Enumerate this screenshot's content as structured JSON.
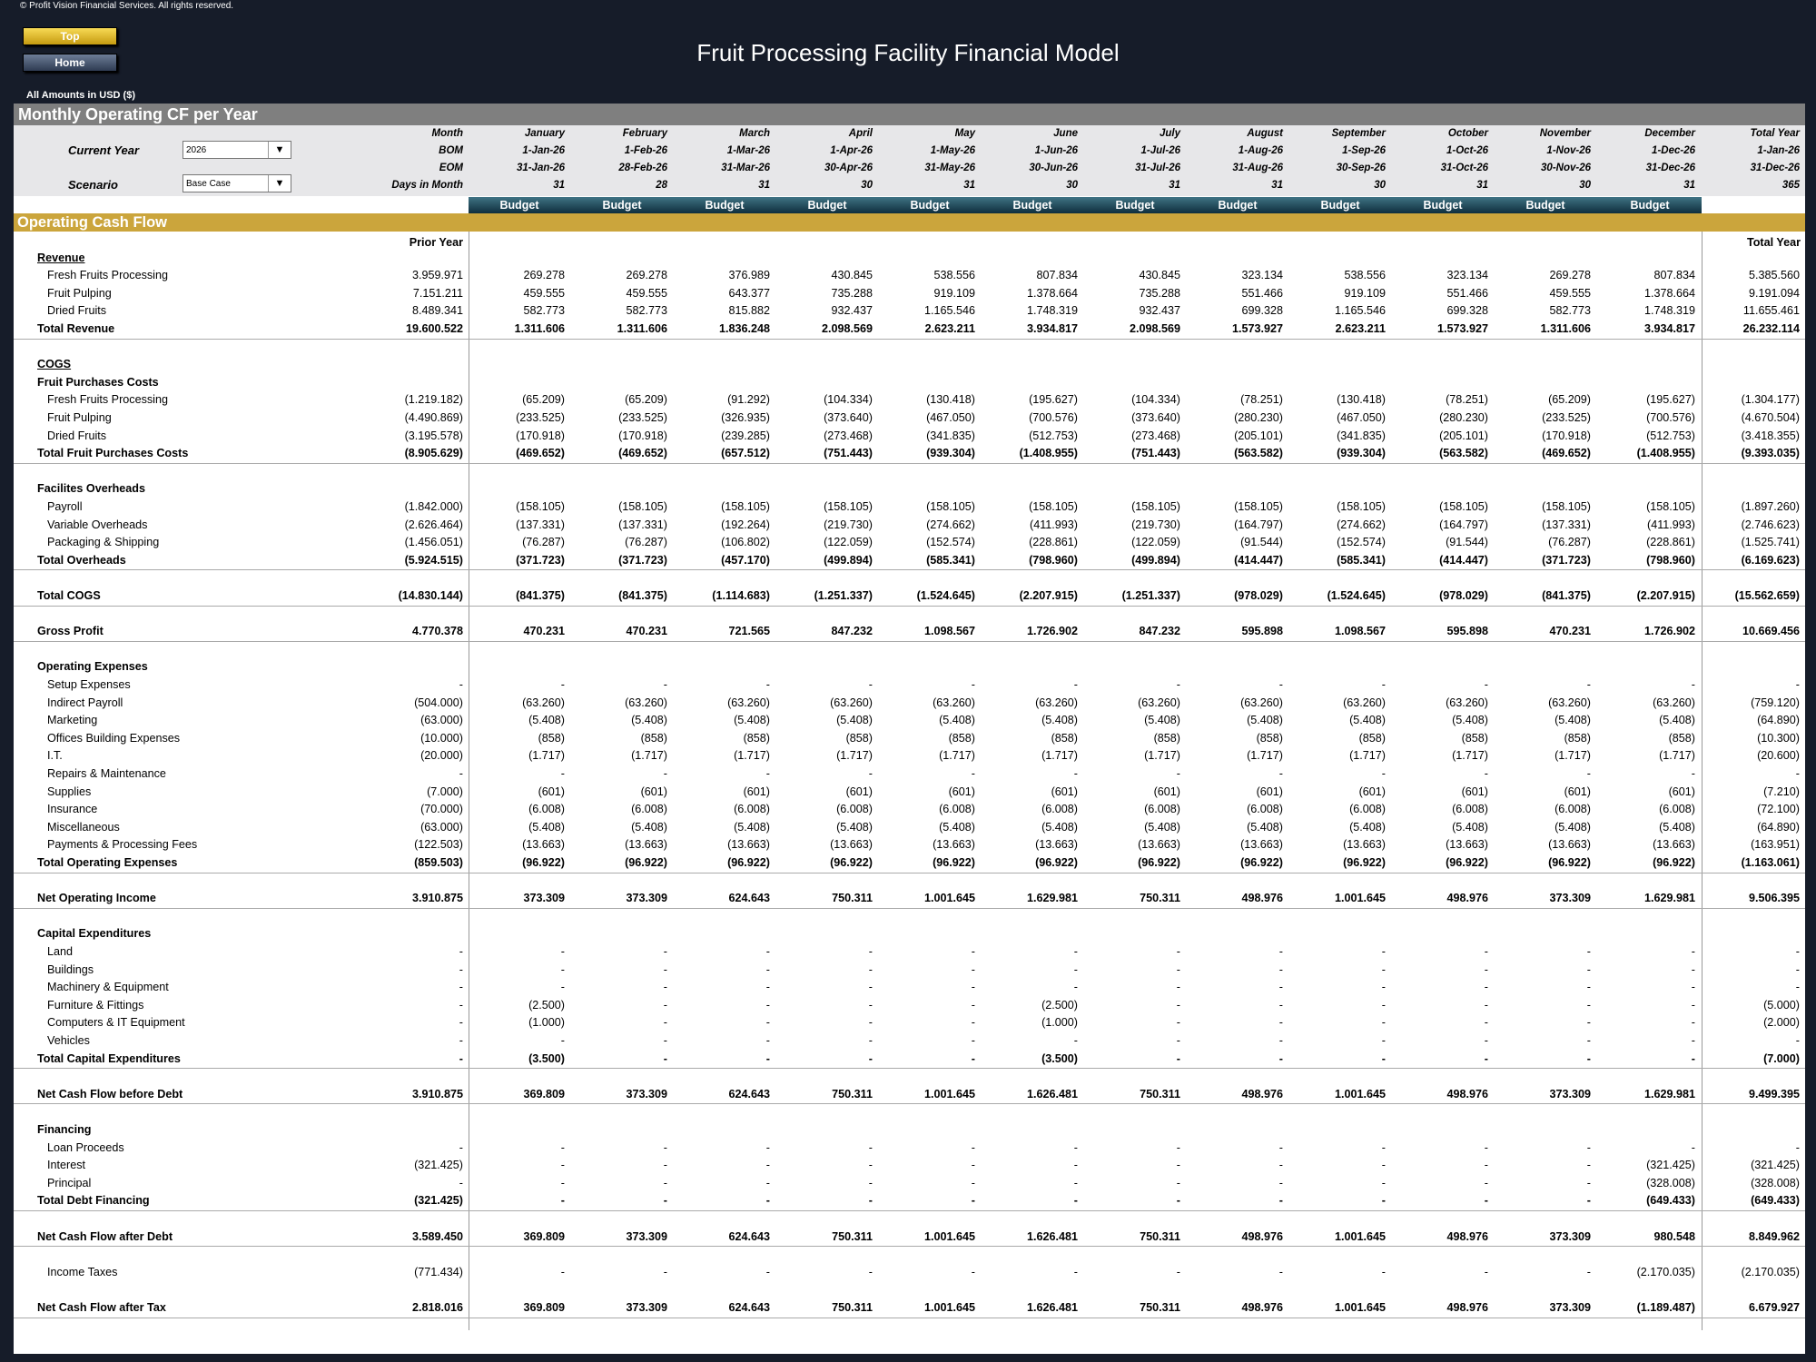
{
  "copyright": "© Profit Vision Financial Services. All rights reserved.",
  "nav": {
    "top_label": "Top",
    "home_label": "Home"
  },
  "title": "Fruit Processing Facility Financial Model",
  "amounts_note": "All Amounts in  USD ($)",
  "section_title": "Monthly Operating CF per Year",
  "params": {
    "current_year_label": "Current Year",
    "current_year_value": "2026",
    "scenario_label": "Scenario",
    "scenario_value": "Base Case"
  },
  "header_labels": {
    "month": "Month",
    "bom": "BOM",
    "eom": "EOM",
    "days": "Days in Month"
  },
  "months": [
    "January",
    "February",
    "March",
    "April",
    "May",
    "June",
    "July",
    "August",
    "September",
    "October",
    "November",
    "December",
    "Total Year"
  ],
  "bom": [
    "1-Jan-26",
    "1-Feb-26",
    "1-Mar-26",
    "1-Apr-26",
    "1-May-26",
    "1-Jun-26",
    "1-Jul-26",
    "1-Aug-26",
    "1-Sep-26",
    "1-Oct-26",
    "1-Nov-26",
    "1-Dec-26",
    "1-Jan-26"
  ],
  "eom": [
    "31-Jan-26",
    "28-Feb-26",
    "31-Mar-26",
    "30-Apr-26",
    "31-May-26",
    "30-Jun-26",
    "31-Jul-26",
    "31-Aug-26",
    "30-Sep-26",
    "31-Oct-26",
    "30-Nov-26",
    "31-Dec-26",
    "31-Dec-26"
  ],
  "days": [
    "31",
    "28",
    "31",
    "30",
    "31",
    "30",
    "31",
    "31",
    "30",
    "31",
    "30",
    "31",
    "365"
  ],
  "budget_label": "Budget",
  "ocf_title": "Operating Cash Flow",
  "prior_year_label": "Prior Year",
  "total_year_label": "Total Year",
  "rows": [
    {
      "label": "Revenue",
      "type": "ul",
      "r": 1
    },
    {
      "label": "Fresh Fruits Processing",
      "type": "item",
      "r": 2,
      "v": [
        "3.959.971",
        "269.278",
        "269.278",
        "376.989",
        "430.845",
        "538.556",
        "807.834",
        "430.845",
        "323.134",
        "538.556",
        "323.134",
        "269.278",
        "807.834",
        "5.385.560"
      ]
    },
    {
      "label": "Fruit Pulping",
      "type": "item",
      "r": 3,
      "v": [
        "7.151.211",
        "459.555",
        "459.555",
        "643.377",
        "735.288",
        "919.109",
        "1.378.664",
        "735.288",
        "551.466",
        "919.109",
        "551.466",
        "459.555",
        "1.378.664",
        "9.191.094"
      ]
    },
    {
      "label": "Dried Fruits",
      "type": "item",
      "r": 4,
      "v": [
        "8.489.341",
        "582.773",
        "582.773",
        "815.882",
        "932.437",
        "1.165.546",
        "1.748.319",
        "932.437",
        "699.328",
        "1.165.546",
        "699.328",
        "582.773",
        "1.748.319",
        "11.655.461"
      ]
    },
    {
      "label": "Total Revenue",
      "type": "total",
      "r": 5,
      "v": [
        "19.600.522",
        "1.311.606",
        "1.311.606",
        "1.836.248",
        "2.098.569",
        "2.623.211",
        "3.934.817",
        "2.098.569",
        "1.573.927",
        "2.623.211",
        "1.573.927",
        "1.311.606",
        "3.934.817",
        "26.232.114"
      ]
    },
    {
      "label": "COGS",
      "type": "ul",
      "r": 7
    },
    {
      "label": "Fruit Purchases Costs",
      "type": "head",
      "r": 8
    },
    {
      "label": "Fresh Fruits Processing",
      "type": "item",
      "r": 9,
      "v": [
        "(1.219.182)",
        "(65.209)",
        "(65.209)",
        "(91.292)",
        "(104.334)",
        "(130.418)",
        "(195.627)",
        "(104.334)",
        "(78.251)",
        "(130.418)",
        "(78.251)",
        "(65.209)",
        "(195.627)",
        "(1.304.177)"
      ]
    },
    {
      "label": "Fruit Pulping",
      "type": "item",
      "r": 10,
      "v": [
        "(4.490.869)",
        "(233.525)",
        "(233.525)",
        "(326.935)",
        "(373.640)",
        "(467.050)",
        "(700.576)",
        "(373.640)",
        "(280.230)",
        "(467.050)",
        "(280.230)",
        "(233.525)",
        "(700.576)",
        "(4.670.504)"
      ]
    },
    {
      "label": "Dried Fruits",
      "type": "item",
      "r": 11,
      "v": [
        "(3.195.578)",
        "(170.918)",
        "(170.918)",
        "(239.285)",
        "(273.468)",
        "(341.835)",
        "(512.753)",
        "(273.468)",
        "(205.101)",
        "(341.835)",
        "(205.101)",
        "(170.918)",
        "(512.753)",
        "(3.418.355)"
      ]
    },
    {
      "label": "Total Fruit Purchases Costs",
      "type": "total",
      "r": 12,
      "v": [
        "(8.905.629)",
        "(469.652)",
        "(469.652)",
        "(657.512)",
        "(751.443)",
        "(939.304)",
        "(1.408.955)",
        "(751.443)",
        "(563.582)",
        "(939.304)",
        "(563.582)",
        "(469.652)",
        "(1.408.955)",
        "(9.393.035)"
      ]
    },
    {
      "label": "Facilites Overheads",
      "type": "head",
      "r": 14
    },
    {
      "label": "Payroll",
      "type": "item",
      "r": 15,
      "v": [
        "(1.842.000)",
        "(158.105)",
        "(158.105)",
        "(158.105)",
        "(158.105)",
        "(158.105)",
        "(158.105)",
        "(158.105)",
        "(158.105)",
        "(158.105)",
        "(158.105)",
        "(158.105)",
        "(158.105)",
        "(1.897.260)"
      ]
    },
    {
      "label": "Variable Overheads",
      "type": "item",
      "r": 16,
      "v": [
        "(2.626.464)",
        "(137.331)",
        "(137.331)",
        "(192.264)",
        "(219.730)",
        "(274.662)",
        "(411.993)",
        "(219.730)",
        "(164.797)",
        "(274.662)",
        "(164.797)",
        "(137.331)",
        "(411.993)",
        "(2.746.623)"
      ]
    },
    {
      "label": "Packaging & Shipping",
      "type": "item",
      "r": 17,
      "v": [
        "(1.456.051)",
        "(76.287)",
        "(76.287)",
        "(106.802)",
        "(122.059)",
        "(152.574)",
        "(228.861)",
        "(122.059)",
        "(91.544)",
        "(152.574)",
        "(91.544)",
        "(76.287)",
        "(228.861)",
        "(1.525.741)"
      ]
    },
    {
      "label": "Total Overheads",
      "type": "total",
      "r": 18,
      "v": [
        "(5.924.515)",
        "(371.723)",
        "(371.723)",
        "(457.170)",
        "(499.894)",
        "(585.341)",
        "(798.960)",
        "(499.894)",
        "(414.447)",
        "(585.341)",
        "(414.447)",
        "(371.723)",
        "(798.960)",
        "(6.169.623)"
      ]
    },
    {
      "label": "Total COGS",
      "type": "total",
      "r": 20,
      "v": [
        "(14.830.144)",
        "(841.375)",
        "(841.375)",
        "(1.114.683)",
        "(1.251.337)",
        "(1.524.645)",
        "(2.207.915)",
        "(1.251.337)",
        "(978.029)",
        "(1.524.645)",
        "(978.029)",
        "(841.375)",
        "(2.207.915)",
        "(15.562.659)"
      ]
    },
    {
      "label": "Gross Profit",
      "type": "total",
      "r": 22,
      "v": [
        "4.770.378",
        "470.231",
        "470.231",
        "721.565",
        "847.232",
        "1.098.567",
        "1.726.902",
        "847.232",
        "595.898",
        "1.098.567",
        "595.898",
        "470.231",
        "1.726.902",
        "10.669.456"
      ]
    },
    {
      "label": "Operating Expenses",
      "type": "head",
      "r": 24
    },
    {
      "label": "Setup Expenses",
      "type": "item",
      "r": 25,
      "v": [
        "-",
        "-",
        "-",
        "-",
        "-",
        "-",
        "-",
        "-",
        "-",
        "-",
        "-",
        "-",
        "-",
        "-"
      ]
    },
    {
      "label": "Indirect Payroll",
      "type": "item",
      "r": 26,
      "v": [
        "(504.000)",
        "(63.260)",
        "(63.260)",
        "(63.260)",
        "(63.260)",
        "(63.260)",
        "(63.260)",
        "(63.260)",
        "(63.260)",
        "(63.260)",
        "(63.260)",
        "(63.260)",
        "(63.260)",
        "(759.120)"
      ]
    },
    {
      "label": "Marketing",
      "type": "item",
      "r": 27,
      "v": [
        "(63.000)",
        "(5.408)",
        "(5.408)",
        "(5.408)",
        "(5.408)",
        "(5.408)",
        "(5.408)",
        "(5.408)",
        "(5.408)",
        "(5.408)",
        "(5.408)",
        "(5.408)",
        "(5.408)",
        "(64.890)"
      ]
    },
    {
      "label": "Offices Building Expenses",
      "type": "item",
      "r": 28,
      "v": [
        "(10.000)",
        "(858)",
        "(858)",
        "(858)",
        "(858)",
        "(858)",
        "(858)",
        "(858)",
        "(858)",
        "(858)",
        "(858)",
        "(858)",
        "(858)",
        "(10.300)"
      ]
    },
    {
      "label": "I.T.",
      "type": "item",
      "r": 29,
      "v": [
        "(20.000)",
        "(1.717)",
        "(1.717)",
        "(1.717)",
        "(1.717)",
        "(1.717)",
        "(1.717)",
        "(1.717)",
        "(1.717)",
        "(1.717)",
        "(1.717)",
        "(1.717)",
        "(1.717)",
        "(20.600)"
      ]
    },
    {
      "label": "Repairs & Maintenance",
      "type": "item",
      "r": 30,
      "v": [
        "-",
        "-",
        "-",
        "-",
        "-",
        "-",
        "-",
        "-",
        "-",
        "-",
        "-",
        "-",
        "-",
        "-"
      ]
    },
    {
      "label": "Supplies",
      "type": "item",
      "r": 31,
      "v": [
        "(7.000)",
        "(601)",
        "(601)",
        "(601)",
        "(601)",
        "(601)",
        "(601)",
        "(601)",
        "(601)",
        "(601)",
        "(601)",
        "(601)",
        "(601)",
        "(7.210)"
      ]
    },
    {
      "label": "Insurance",
      "type": "item",
      "r": 32,
      "v": [
        "(70.000)",
        "(6.008)",
        "(6.008)",
        "(6.008)",
        "(6.008)",
        "(6.008)",
        "(6.008)",
        "(6.008)",
        "(6.008)",
        "(6.008)",
        "(6.008)",
        "(6.008)",
        "(6.008)",
        "(72.100)"
      ]
    },
    {
      "label": "Miscellaneous",
      "type": "item",
      "r": 33,
      "v": [
        "(63.000)",
        "(5.408)",
        "(5.408)",
        "(5.408)",
        "(5.408)",
        "(5.408)",
        "(5.408)",
        "(5.408)",
        "(5.408)",
        "(5.408)",
        "(5.408)",
        "(5.408)",
        "(5.408)",
        "(64.890)"
      ]
    },
    {
      "label": "Payments & Processing Fees",
      "type": "item",
      "r": 34,
      "v": [
        "(122.503)",
        "(13.663)",
        "(13.663)",
        "(13.663)",
        "(13.663)",
        "(13.663)",
        "(13.663)",
        "(13.663)",
        "(13.663)",
        "(13.663)",
        "(13.663)",
        "(13.663)",
        "(13.663)",
        "(163.951)"
      ]
    },
    {
      "label": "Total Operating Expenses",
      "type": "total",
      "r": 35,
      "v": [
        "(859.503)",
        "(96.922)",
        "(96.922)",
        "(96.922)",
        "(96.922)",
        "(96.922)",
        "(96.922)",
        "(96.922)",
        "(96.922)",
        "(96.922)",
        "(96.922)",
        "(96.922)",
        "(96.922)",
        "(1.163.061)"
      ]
    },
    {
      "label": "Net Operating Income",
      "type": "total",
      "r": 37,
      "v": [
        "3.910.875",
        "373.309",
        "373.309",
        "624.643",
        "750.311",
        "1.001.645",
        "1.629.981",
        "750.311",
        "498.976",
        "1.001.645",
        "498.976",
        "373.309",
        "1.629.981",
        "9.506.395"
      ]
    },
    {
      "label": "Capital Expenditures",
      "type": "head",
      "r": 39
    },
    {
      "label": "Land",
      "type": "item",
      "r": 40,
      "v": [
        "-",
        "-",
        "-",
        "-",
        "-",
        "-",
        "-",
        "-",
        "-",
        "-",
        "-",
        "-",
        "-",
        "-"
      ]
    },
    {
      "label": "Buildings",
      "type": "item",
      "r": 41,
      "v": [
        "-",
        "-",
        "-",
        "-",
        "-",
        "-",
        "-",
        "-",
        "-",
        "-",
        "-",
        "-",
        "-",
        "-"
      ]
    },
    {
      "label": "Machinery & Equipment",
      "type": "item",
      "r": 42,
      "v": [
        "-",
        "-",
        "-",
        "-",
        "-",
        "-",
        "-",
        "-",
        "-",
        "-",
        "-",
        "-",
        "-",
        "-"
      ]
    },
    {
      "label": "Furniture & Fittings",
      "type": "item",
      "r": 43,
      "v": [
        "-",
        "(2.500)",
        "-",
        "-",
        "-",
        "-",
        "(2.500)",
        "-",
        "-",
        "-",
        "-",
        "-",
        "-",
        "(5.000)"
      ]
    },
    {
      "label": "Computers & IT Equipment",
      "type": "item",
      "r": 44,
      "v": [
        "-",
        "(1.000)",
        "-",
        "-",
        "-",
        "-",
        "(1.000)",
        "-",
        "-",
        "-",
        "-",
        "-",
        "-",
        "(2.000)"
      ]
    },
    {
      "label": "Vehicles",
      "type": "item",
      "r": 45,
      "v": [
        "-",
        "-",
        "-",
        "-",
        "-",
        "-",
        "-",
        "-",
        "-",
        "-",
        "-",
        "-",
        "-",
        "-"
      ]
    },
    {
      "label": "Total Capital Expenditures",
      "type": "total",
      "r": 46,
      "v": [
        "-",
        "(3.500)",
        "-",
        "-",
        "-",
        "-",
        "(3.500)",
        "-",
        "-",
        "-",
        "-",
        "-",
        "-",
        "(7.000)"
      ]
    },
    {
      "label": "Net Cash Flow before Debt",
      "type": "total",
      "r": 48,
      "v": [
        "3.910.875",
        "369.809",
        "373.309",
        "624.643",
        "750.311",
        "1.001.645",
        "1.626.481",
        "750.311",
        "498.976",
        "1.001.645",
        "498.976",
        "373.309",
        "1.629.981",
        "9.499.395"
      ]
    },
    {
      "label": "Financing",
      "type": "head",
      "r": 50
    },
    {
      "label": "Loan Proceeds",
      "type": "item",
      "r": 51,
      "v": [
        "-",
        "-",
        "-",
        "-",
        "-",
        "-",
        "-",
        "-",
        "-",
        "-",
        "-",
        "-",
        "-",
        "-"
      ]
    },
    {
      "label": "Interest",
      "type": "item",
      "r": 52,
      "v": [
        "(321.425)",
        "-",
        "-",
        "-",
        "-",
        "-",
        "-",
        "-",
        "-",
        "-",
        "-",
        "-",
        "(321.425)",
        "(321.425)"
      ]
    },
    {
      "label": "Principal",
      "type": "item",
      "r": 53,
      "v": [
        "-",
        "-",
        "-",
        "-",
        "-",
        "-",
        "-",
        "-",
        "-",
        "-",
        "-",
        "-",
        "(328.008)",
        "(328.008)"
      ]
    },
    {
      "label": "Total Debt Financing",
      "type": "total",
      "r": 54,
      "v": [
        "(321.425)",
        "-",
        "-",
        "-",
        "-",
        "-",
        "-",
        "-",
        "-",
        "-",
        "-",
        "-",
        "(649.433)",
        "(649.433)"
      ]
    },
    {
      "label": "Net Cash Flow after Debt",
      "type": "total",
      "r": 56,
      "v": [
        "3.589.450",
        "369.809",
        "373.309",
        "624.643",
        "750.311",
        "1.001.645",
        "1.626.481",
        "750.311",
        "498.976",
        "1.001.645",
        "498.976",
        "373.309",
        "980.548",
        "8.849.962"
      ]
    },
    {
      "label": "Income Taxes",
      "type": "item",
      "r": 58,
      "v": [
        "(771.434)",
        "-",
        "-",
        "-",
        "-",
        "-",
        "-",
        "-",
        "-",
        "-",
        "-",
        "-",
        "(2.170.035)",
        "(2.170.035)"
      ]
    },
    {
      "label": "Net Cash Flow after Tax",
      "type": "total",
      "r": 60,
      "v": [
        "2.818.016",
        "369.809",
        "373.309",
        "624.643",
        "750.311",
        "1.001.645",
        "1.626.481",
        "750.311",
        "498.976",
        "1.001.645",
        "498.976",
        "373.309",
        "(1.189.487)",
        "6.679.927"
      ]
    }
  ]
}
